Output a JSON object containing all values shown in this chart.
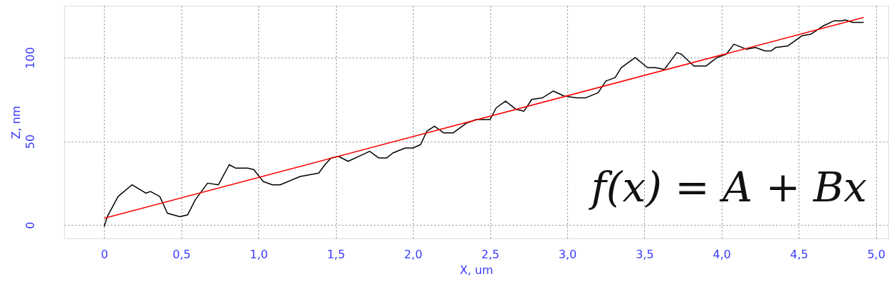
{
  "chart_data": {
    "type": "line",
    "xlabel": "X, um",
    "ylabel": "Z, nm",
    "xlim": [
      -0.26,
      5.08
    ],
    "ylim": [
      -8,
      131
    ],
    "xticks": [
      0,
      {
        "value": 0.5,
        "label": "0,5"
      },
      {
        "value": 1.0,
        "label": "1,0"
      },
      {
        "value": 1.5,
        "label": "1,5"
      },
      {
        "value": 2.0,
        "label": "2,0"
      },
      {
        "value": 2.5,
        "label": "2,5"
      },
      {
        "value": 3.0,
        "label": "3,0"
      },
      {
        "value": 3.5,
        "label": "3,5"
      },
      {
        "value": 4.0,
        "label": "4,0"
      },
      {
        "value": 4.5,
        "label": "4,5"
      },
      {
        "value": 5.0,
        "label": "5,0"
      }
    ],
    "yticks": [
      0,
      50,
      100
    ],
    "grid": true,
    "line_style": "solid",
    "annotations": [
      "f(x) = A + Bx"
    ],
    "series": [
      {
        "color": "#000000",
        "x": [
          0,
          0.02,
          0.09,
          0.18,
          0.27,
          0.3,
          0.36,
          0.41,
          0.49,
          0.54,
          0.59,
          0.67,
          0.74,
          0.81,
          0.85,
          0.93,
          0.97,
          1.03,
          1.09,
          1.14,
          1.27,
          1.39,
          1.43,
          1.47,
          1.52,
          1.58,
          1.72,
          1.78,
          1.83,
          1.87,
          1.95,
          2.0,
          2.05,
          2.09,
          2.14,
          2.2,
          2.26,
          2.35,
          2.41,
          2.5,
          2.54,
          2.6,
          2.67,
          2.72,
          2.77,
          2.84,
          2.91,
          2.98,
          3.06,
          3.12,
          3.2,
          3.25,
          3.31,
          3.35,
          3.44,
          3.52,
          3.57,
          3.63,
          3.71,
          3.74,
          3.82,
          3.9,
          3.97,
          4.03,
          4.08,
          4.16,
          4.22,
          4.28,
          4.32,
          4.35,
          4.43,
          4.52,
          4.58,
          4.66,
          4.73,
          4.78,
          4.8,
          4.85,
          4.88,
          4.92
        ],
        "values": [
          -1,
          5,
          17,
          24,
          19,
          20,
          17,
          7,
          5,
          6,
          15,
          25,
          24,
          36,
          34,
          34,
          33,
          26,
          24,
          24,
          29,
          31,
          36,
          40,
          41,
          38,
          44,
          40,
          40,
          43,
          46,
          46,
          48,
          56,
          59,
          55,
          55,
          61,
          63,
          63,
          70,
          74,
          69,
          68,
          75,
          76,
          80,
          77,
          76,
          76,
          79,
          86,
          88,
          94,
          100,
          94,
          94,
          93,
          103,
          102,
          95,
          95,
          100,
          102,
          108,
          105,
          106,
          104,
          104,
          106,
          107,
          113,
          114,
          119,
          122,
          122,
          122.5,
          121,
          121,
          121
        ]
      },
      {
        "color": "#ff0000",
        "x": [
          0,
          4.92
        ],
        "values": [
          4,
          124
        ]
      }
    ]
  }
}
